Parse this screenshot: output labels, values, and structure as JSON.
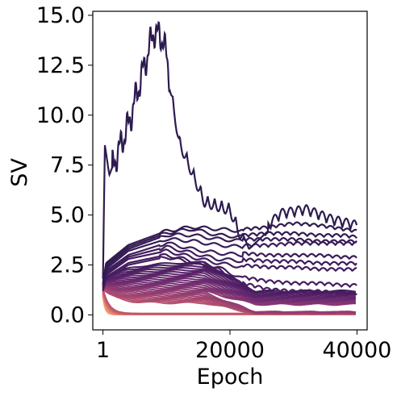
{
  "chart_data": {
    "type": "line",
    "xlabel": "Epoch",
    "ylabel": "SV",
    "xlim": [
      -1600,
      41600
    ],
    "ylim": [
      -0.75,
      15.2
    ],
    "x_ticks": [
      1,
      20000,
      40000
    ],
    "x_tick_labels": [
      "1",
      "20000",
      "40000"
    ],
    "y_ticks": [
      0.0,
      2.5,
      5.0,
      7.5,
      10.0,
      12.5,
      15.0
    ],
    "y_tick_labels": [
      "0.0",
      "2.5",
      "5.0",
      "7.5",
      "10.0",
      "12.5",
      "15.0"
    ],
    "grid": false,
    "colormap": [
      "#2d1b4f",
      "#4a1d62",
      "#6b2a70",
      "#8f3b72",
      "#b34f70",
      "#d56b6a",
      "#ec8f6b",
      "#f4b183"
    ],
    "series_count": 60,
    "series": [
      {
        "x": [
          1,
          300,
          1000,
          4000,
          8000,
          9500,
          12000,
          16000,
          20000,
          23000,
          28000,
          32000,
          36000,
          40000
        ],
        "values": [
          1.8,
          8.5,
          7.0,
          9.5,
          14.2,
          13.8,
          9.0,
          6.0,
          5.6,
          3.3,
          4.8,
          5.0,
          4.5,
          4.2
        ]
      },
      {
        "x": [
          1,
          500,
          4000,
          10000,
          14000,
          18000,
          22000,
          26000,
          30000,
          34000,
          38000,
          40000
        ],
        "values": [
          1.6,
          2.6,
          3.5,
          4.2,
          4.4,
          4.3,
          4.2,
          4.3,
          4.5,
          4.4,
          4.2,
          4.1
        ]
      },
      {
        "x": [
          1,
          500,
          4000,
          10000,
          14000,
          18000,
          22000,
          26000,
          30000,
          34000,
          38000,
          40000
        ],
        "values": [
          1.5,
          2.5,
          3.4,
          4.1,
          4.3,
          4.0,
          3.9,
          4.0,
          4.0,
          3.9,
          3.9,
          3.8
        ]
      },
      {
        "x": [
          1,
          500,
          4000,
          10000,
          14000,
          18000,
          22000,
          26000,
          30000,
          34000,
          38000,
          40000
        ],
        "values": [
          1.5,
          2.4,
          3.3,
          4.0,
          4.0,
          3.8,
          3.7,
          3.7,
          3.7,
          3.6,
          3.6,
          3.6
        ]
      },
      {
        "x": [
          1,
          500,
          4000,
          10000,
          14000,
          18000,
          22000,
          26000,
          30000,
          34000,
          38000,
          40000
        ],
        "values": [
          1.4,
          2.3,
          3.2,
          3.8,
          3.7,
          3.5,
          3.4,
          3.4,
          3.5,
          3.5,
          3.5,
          3.5
        ]
      },
      {
        "x": [
          1,
          500,
          4000,
          10000,
          14000,
          18000,
          22000,
          26000,
          30000,
          34000,
          38000,
          40000
        ],
        "values": [
          1.4,
          2.2,
          3.0,
          3.6,
          3.3,
          3.1,
          3.0,
          2.9,
          2.9,
          2.9,
          2.8,
          2.8
        ]
      },
      {
        "x": [
          1,
          500,
          4000,
          10000,
          14000,
          18000,
          22000,
          26000,
          30000,
          34000,
          38000,
          40000
        ],
        "values": [
          1.3,
          2.1,
          2.9,
          3.4,
          3.1,
          2.8,
          2.7,
          2.6,
          2.6,
          2.5,
          2.5,
          2.5
        ]
      },
      {
        "x": [
          1,
          500,
          4000,
          10000,
          14000,
          18000,
          22000,
          26000,
          30000,
          34000,
          38000,
          40000
        ],
        "values": [
          1.3,
          2.0,
          2.8,
          3.2,
          2.9,
          2.6,
          2.4,
          2.3,
          2.3,
          2.2,
          2.2,
          2.2
        ]
      },
      {
        "x": [
          1,
          500,
          4000,
          10000,
          14000,
          18000,
          22000,
          26000,
          30000,
          34000,
          38000,
          40000
        ],
        "values": [
          1.2,
          1.9,
          2.6,
          3.0,
          2.7,
          2.4,
          1.8,
          1.6,
          1.5,
          1.5,
          1.4,
          1.4
        ]
      },
      {
        "x": [
          1,
          500,
          4000,
          10000,
          14000,
          18000,
          22000,
          26000,
          30000,
          34000,
          38000,
          40000
        ],
        "values": [
          1.2,
          1.8,
          2.5,
          2.9,
          2.6,
          2.3,
          1.5,
          1.2,
          1.1,
          1.1,
          1.0,
          1.0
        ]
      }
    ]
  }
}
